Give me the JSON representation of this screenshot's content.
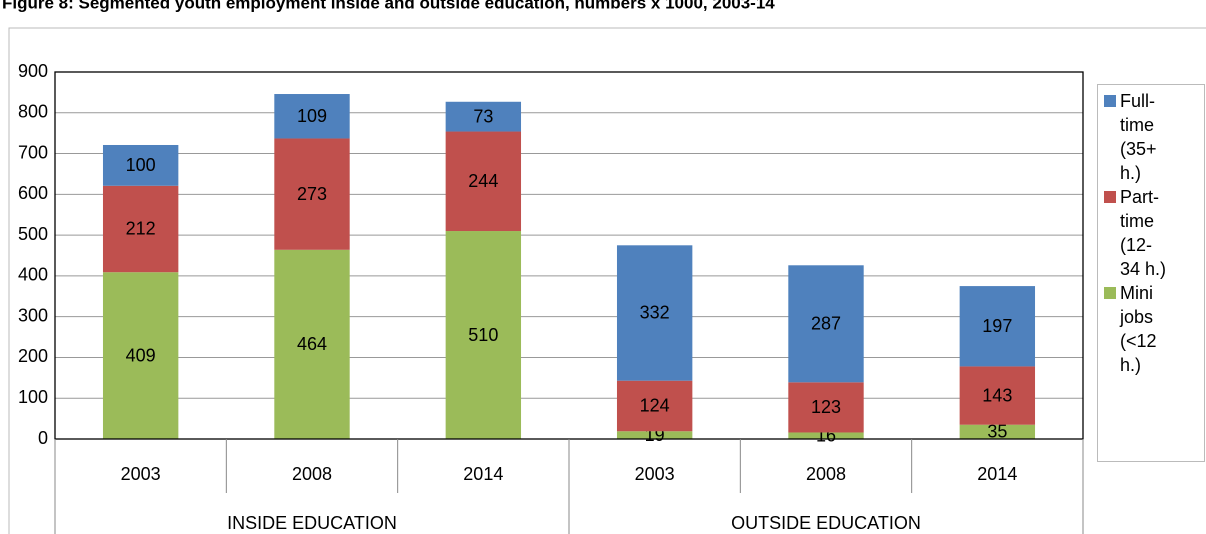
{
  "chart_data": {
    "type": "stacked-bar",
    "title": "Figure 8: Segmented youth employment inside and outside education, numbers x 1000, 2003-14",
    "groups": [
      {
        "name": "INSIDE EDUCATION",
        "categories": [
          "2003",
          "2008",
          "2014"
        ]
      },
      {
        "name": "OUTSIDE EDUCATION",
        "categories": [
          "2003",
          "2008",
          "2014"
        ]
      }
    ],
    "series": [
      {
        "name": "Full-time (35+ h.)",
        "color": "#4f81bd",
        "values": [
          100,
          109,
          73,
          332,
          287,
          197
        ]
      },
      {
        "name": "Part-time (12-34 h.)",
        "color": "#c0504d",
        "values": [
          212,
          273,
          244,
          124,
          123,
          143
        ]
      },
      {
        "name": "Mini jobs (<12 h.)",
        "color": "#9bbb59",
        "values": [
          409,
          464,
          510,
          19,
          16,
          35
        ]
      }
    ],
    "ylim": [
      0,
      900
    ],
    "yticks": [
      0,
      100,
      200,
      300,
      400,
      500,
      600,
      700,
      800,
      900
    ],
    "grid": true
  }
}
